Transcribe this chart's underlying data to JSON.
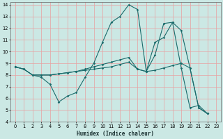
{
  "xlabel": "Humidex (Indice chaleur)",
  "xlim": [
    -0.5,
    23.5
  ],
  "ylim": [
    4,
    14.2
  ],
  "xticks": [
    0,
    1,
    2,
    3,
    4,
    5,
    6,
    7,
    8,
    9,
    10,
    11,
    12,
    13,
    14,
    15,
    16,
    17,
    18,
    19,
    20,
    21,
    22,
    23
  ],
  "yticks": [
    4,
    5,
    6,
    7,
    8,
    9,
    10,
    11,
    12,
    13,
    14
  ],
  "bg_color": "#cbe8e4",
  "grid_color": "#e8a0a0",
  "line_color": "#1a6b6b",
  "line1_x": [
    0,
    1,
    2,
    3,
    4,
    5,
    6,
    7,
    8,
    9,
    10,
    11,
    12,
    13,
    14,
    15,
    16,
    17,
    18,
    19,
    20,
    21,
    22
  ],
  "line1_y": [
    8.7,
    8.5,
    8.0,
    7.8,
    7.2,
    5.7,
    6.2,
    6.5,
    7.8,
    9.0,
    10.8,
    12.5,
    13.0,
    14.0,
    13.6,
    8.3,
    9.7,
    12.4,
    12.5,
    8.6,
    5.2,
    5.4,
    4.7
  ],
  "line2_x": [
    0,
    1,
    2,
    3,
    4,
    5,
    6,
    7,
    8,
    9,
    10,
    11,
    12,
    13,
    14,
    15,
    16,
    17,
    18,
    19,
    20,
    21,
    22
  ],
  "line2_y": [
    8.7,
    8.5,
    8.0,
    8.0,
    8.0,
    8.1,
    8.2,
    8.3,
    8.4,
    8.5,
    8.6,
    8.7,
    8.9,
    9.1,
    8.5,
    8.3,
    8.4,
    8.6,
    8.8,
    9.0,
    8.6,
    5.2,
    4.7
  ],
  "line3_x": [
    0,
    1,
    2,
    3,
    4,
    5,
    6,
    7,
    8,
    9,
    10,
    11,
    12,
    13,
    14,
    15,
    16,
    17,
    18,
    19,
    20,
    21,
    22
  ],
  "line3_y": [
    8.7,
    8.5,
    8.0,
    8.0,
    8.0,
    8.1,
    8.2,
    8.3,
    8.5,
    8.7,
    8.9,
    9.1,
    9.3,
    9.5,
    8.5,
    8.3,
    10.8,
    11.2,
    12.5,
    11.8,
    8.6,
    5.2,
    4.7
  ]
}
